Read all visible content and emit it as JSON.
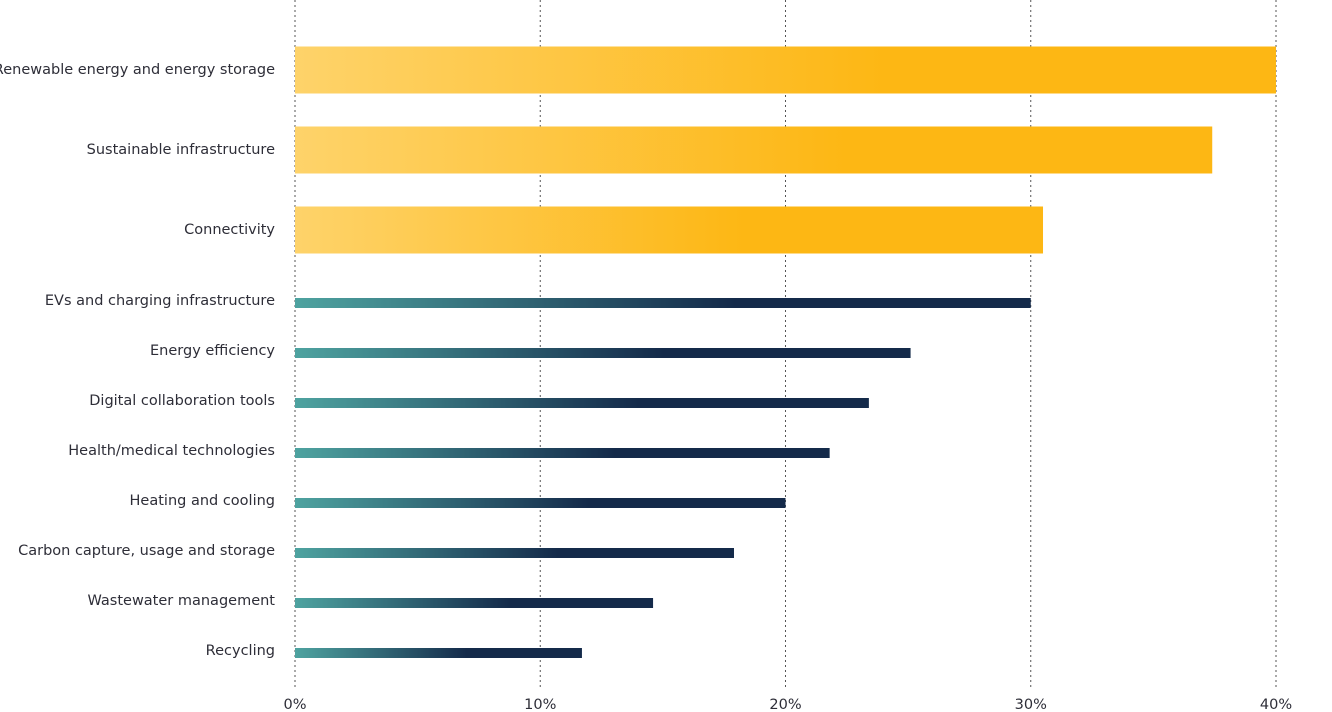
{
  "chart_data": {
    "type": "hbar",
    "categories": [
      "Renewable energy and energy storage",
      "Sustainable infrastructure",
      "Connectivity",
      "EVs and charging infrastructure",
      "Energy efficiency",
      "Digital collaboration tools",
      "Health/medical technologies",
      "Heating and cooling",
      "Carbon capture, usage and storage",
      "Wastewater management",
      "Recycling"
    ],
    "series": [
      {
        "color": [
          "#fed36a",
          "#fdb714"
        ],
        "values": [
          40,
          37.4,
          30.5,
          null,
          null,
          null,
          null,
          null,
          null,
          null,
          null
        ]
      },
      {
        "color": [
          "#4ea3a0",
          "#142a4a"
        ],
        "values": [
          null,
          null,
          null,
          30.0,
          25.1,
          23.4,
          21.8,
          20.0,
          17.9,
          14.6,
          11.7
        ]
      }
    ],
    "xlim": [
      0,
      40
    ],
    "xticks": [
      {
        "value": 0,
        "label": "0%"
      },
      {
        "value": 10,
        "label": "10%"
      },
      {
        "value": 20,
        "label": "20%"
      },
      {
        "value": 30,
        "label": "30%"
      },
      {
        "value": 40,
        "label": "40%"
      }
    ],
    "grid": true
  }
}
